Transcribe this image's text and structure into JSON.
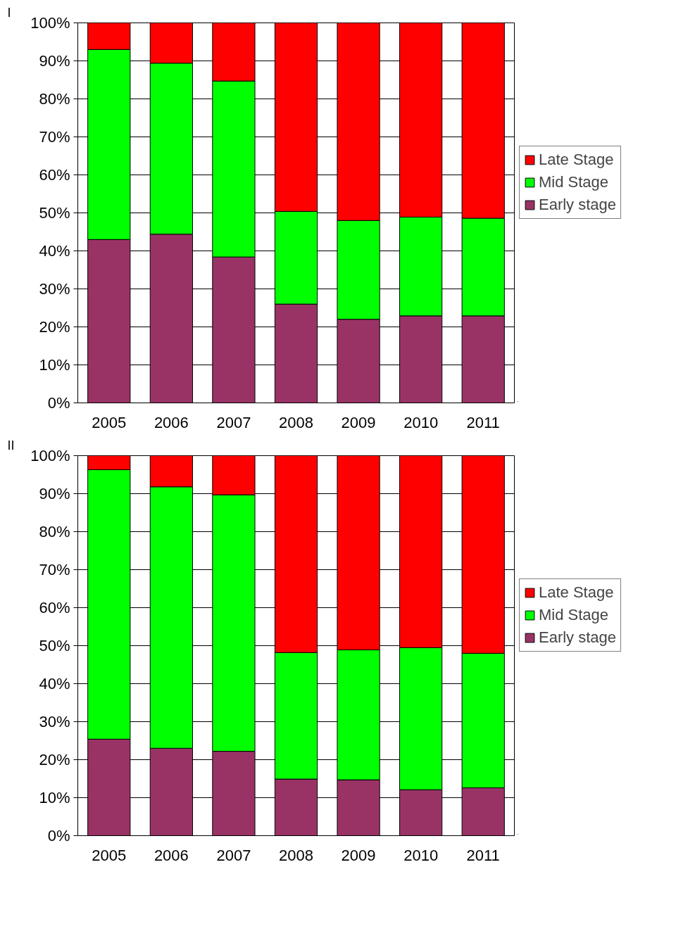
{
  "chart_data": [
    {
      "type": "bar",
      "title": "I",
      "stacked": true,
      "categories": [
        "2005",
        "2006",
        "2007",
        "2008",
        "2009",
        "2010",
        "2011"
      ],
      "series": [
        {
          "name": "Early stage",
          "color": "#993366",
          "values": [
            43.0,
            44.4,
            38.4,
            26.0,
            22.0,
            22.9,
            22.9
          ]
        },
        {
          "name": "Mid Stage",
          "color": "#00ff00",
          "values": [
            50.0,
            45.0,
            46.3,
            24.4,
            26.0,
            26.0,
            25.7
          ]
        },
        {
          "name": "Late Stage",
          "color": "#ff0000",
          "values": [
            7.0,
            10.6,
            15.3,
            49.6,
            52.0,
            51.1,
            51.4
          ]
        }
      ],
      "ylim": [
        0,
        100
      ],
      "yticks": [
        {
          "value": 0,
          "label": "0%"
        },
        {
          "value": 10,
          "label": "10%"
        },
        {
          "value": 20,
          "label": "20%"
        },
        {
          "value": 30,
          "label": "30%"
        },
        {
          "value": 40,
          "label": "40%"
        },
        {
          "value": 50,
          "label": "50%"
        },
        {
          "value": 60,
          "label": "60%"
        },
        {
          "value": 70,
          "label": "70%"
        },
        {
          "value": 80,
          "label": "80%"
        },
        {
          "value": 90,
          "label": "90%"
        },
        {
          "value": 100,
          "label": "100%"
        }
      ],
      "grid": "y",
      "legend": "right"
    },
    {
      "type": "bar",
      "title": "II",
      "stacked": true,
      "categories": [
        "2005",
        "2006",
        "2007",
        "2008",
        "2009",
        "2010",
        "2011"
      ],
      "series": [
        {
          "name": "Early stage",
          "color": "#993366",
          "values": [
            25.4,
            23.0,
            22.2,
            14.9,
            14.7,
            12.1,
            12.6
          ]
        },
        {
          "name": "Mid Stage",
          "color": "#00ff00",
          "values": [
            70.9,
            68.8,
            67.5,
            33.3,
            34.2,
            37.4,
            35.4
          ]
        },
        {
          "name": "Late Stage",
          "color": "#ff0000",
          "values": [
            3.7,
            8.2,
            10.3,
            51.8,
            51.1,
            50.5,
            52.0
          ]
        }
      ],
      "ylim": [
        0,
        100
      ],
      "yticks": [
        {
          "value": 0,
          "label": "0%"
        },
        {
          "value": 10,
          "label": "10%"
        },
        {
          "value": 20,
          "label": "20%"
        },
        {
          "value": 30,
          "label": "30%"
        },
        {
          "value": 40,
          "label": "40%"
        },
        {
          "value": 50,
          "label": "50%"
        },
        {
          "value": 60,
          "label": "60%"
        },
        {
          "value": 70,
          "label": "70%"
        },
        {
          "value": 80,
          "label": "80%"
        },
        {
          "value": 90,
          "label": "90%"
        },
        {
          "value": 100,
          "label": "100%"
        }
      ],
      "grid": "y",
      "legend": "right"
    }
  ]
}
